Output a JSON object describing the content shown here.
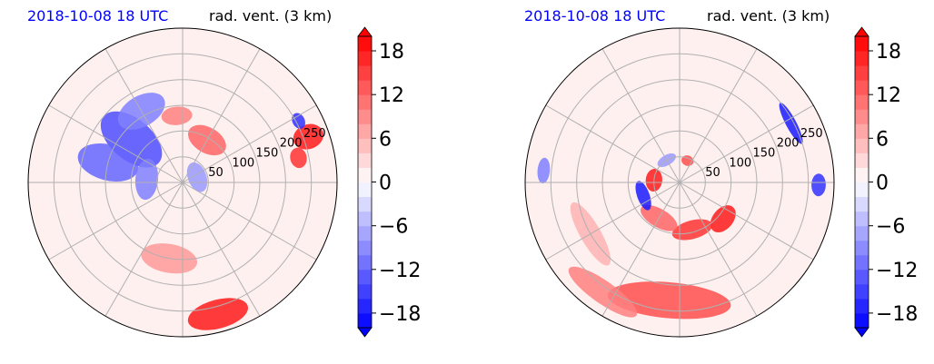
{
  "panels": [
    {
      "date_label": "2018-10-08 18 UTC",
      "variable_label": "rad. vent. (3 km)"
    },
    {
      "date_label": "2018-10-08 18 UTC",
      "variable_label": "rad. vent. (3 km)"
    }
  ],
  "chart_data": [
    {
      "type": "heatmap",
      "projection": "polar",
      "title_left": "2018-10-08 18 UTC",
      "title_right": "rad. vent. (3 km)",
      "radial_ticks": [
        50,
        100,
        150,
        200,
        250
      ],
      "angular_grid_deg": 30,
      "colorbar": {
        "ticks": [
          18,
          12,
          6,
          0,
          -6,
          -12,
          -18
        ],
        "range": [
          -20,
          20
        ],
        "cmap": "bwr",
        "extend": "both"
      },
      "features": [
        {
          "kind": "blue",
          "r": 130,
          "theta": 140,
          "w": 40,
          "h": 70,
          "v": -14
        },
        {
          "kind": "blue",
          "r": 150,
          "theta": 165,
          "w": 35,
          "h": 60,
          "v": -12
        },
        {
          "kind": "blue",
          "r": 160,
          "theta": 120,
          "w": 50,
          "h": 30,
          "v": -10
        },
        {
          "kind": "blue",
          "r": 70,
          "theta": 175,
          "w": 40,
          "h": 22,
          "v": -10
        },
        {
          "kind": "blue",
          "r": 30,
          "theta": 20,
          "w": 30,
          "h": 18,
          "v": -8
        },
        {
          "kind": "red",
          "r": 95,
          "theta": 60,
          "w": 40,
          "h": 25,
          "v": 12
        },
        {
          "kind": "red",
          "r": 130,
          "theta": 95,
          "w": 30,
          "h": 18,
          "v": 10
        },
        {
          "kind": "red",
          "r": 260,
          "theta": 20,
          "w": 24,
          "h": 30,
          "v": 18
        },
        {
          "kind": "red",
          "r": 230,
          "theta": 12,
          "w": 20,
          "h": 16,
          "v": 16
        },
        {
          "kind": "blue",
          "r": 255,
          "theta": 28,
          "w": 16,
          "h": 12,
          "v": -16
        },
        {
          "kind": "red",
          "r": 150,
          "theta": -100,
          "w": 55,
          "h": 28,
          "v": 8
        },
        {
          "kind": "red",
          "r": 265,
          "theta": -75,
          "w": 60,
          "h": 28,
          "v": 18
        }
      ]
    },
    {
      "type": "heatmap",
      "projection": "polar",
      "title_left": "2018-10-08 18 UTC",
      "title_right": "rad. vent. (3 km)",
      "radial_ticks": [
        50,
        100,
        150,
        200,
        250
      ],
      "angular_grid_deg": 30,
      "colorbar": {
        "ticks": [
          18,
          12,
          6,
          0,
          -6,
          -12,
          -18
        ],
        "range": [
          -20,
          20
        ],
        "cmap": "bwr",
        "extend": "both"
      },
      "features": [
        {
          "kind": "red",
          "r": 110,
          "theta": -40,
          "w": 30,
          "h": 20,
          "v": 18
        },
        {
          "kind": "red",
          "r": 95,
          "theta": -75,
          "w": 40,
          "h": 18,
          "v": 16
        },
        {
          "kind": "red",
          "r": 80,
          "theta": -120,
          "w": 40,
          "h": 18,
          "v": 12
        },
        {
          "kind": "red",
          "r": 50,
          "theta": 175,
          "w": 22,
          "h": 16,
          "v": 18
        },
        {
          "kind": "red",
          "r": 45,
          "theta": 70,
          "w": 12,
          "h": 10,
          "v": 14
        },
        {
          "kind": "blue",
          "r": 75,
          "theta": 200,
          "w": 30,
          "h": 12,
          "v": -18
        },
        {
          "kind": "blue",
          "r": 50,
          "theta": 120,
          "w": 20,
          "h": 10,
          "v": -8
        },
        {
          "kind": "blue",
          "r": 245,
          "theta": 28,
          "w": 45,
          "h": 10,
          "v": -18
        },
        {
          "kind": "blue",
          "r": 270,
          "theta": -1,
          "w": 22,
          "h": 14,
          "v": -16
        },
        {
          "kind": "red",
          "r": 230,
          "theta": -95,
          "w": 120,
          "h": 35,
          "v": 14
        },
        {
          "kind": "red",
          "r": 260,
          "theta": -125,
          "w": 80,
          "h": 22,
          "v": 10
        },
        {
          "kind": "red",
          "r": 200,
          "theta": -150,
          "w": 70,
          "h": 20,
          "v": 6
        },
        {
          "kind": "blue",
          "r": 265,
          "theta": 175,
          "w": 25,
          "h": 12,
          "v": -10
        }
      ]
    }
  ]
}
